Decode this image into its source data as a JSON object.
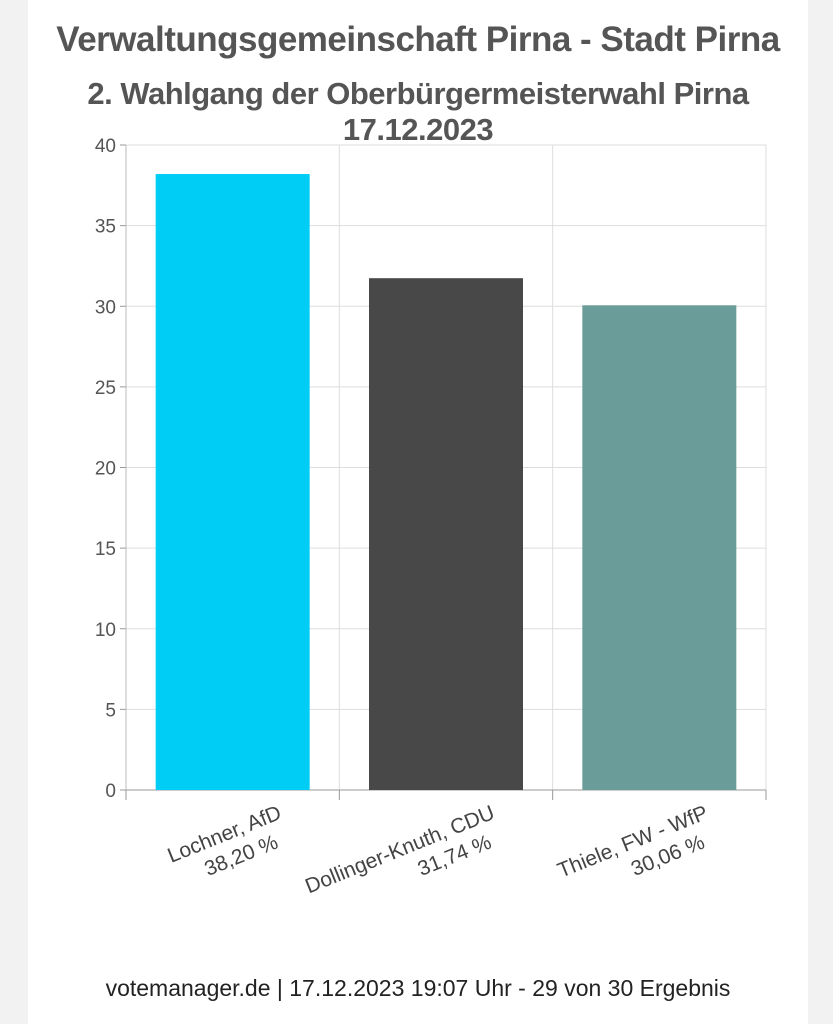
{
  "chart_data": {
    "type": "bar",
    "title": "Verwaltungsgemeinschaft Pirna - Stadt Pirna",
    "subtitle": "2. Wahlgang der Oberbürgermeisterwahl Pirna 17.12.2023",
    "categories": [
      "Lochner, AfD",
      "Dollinger-Knuth, CDU",
      "Thiele, FW - WfP"
    ],
    "value_labels": [
      "38,20 %",
      "31,74 %",
      "30,06 %"
    ],
    "values": [
      38.2,
      31.74,
      30.06
    ],
    "colors": [
      "#00cdf6",
      "#484848",
      "#6a9c9a"
    ],
    "ylim": [
      0,
      40
    ],
    "yticks": [
      0,
      5,
      10,
      15,
      20,
      25,
      30,
      35,
      40
    ],
    "grid": true
  },
  "footer": "votemanager.de | 17.12.2023 19:07 Uhr - 29 von 30 Ergebnis"
}
